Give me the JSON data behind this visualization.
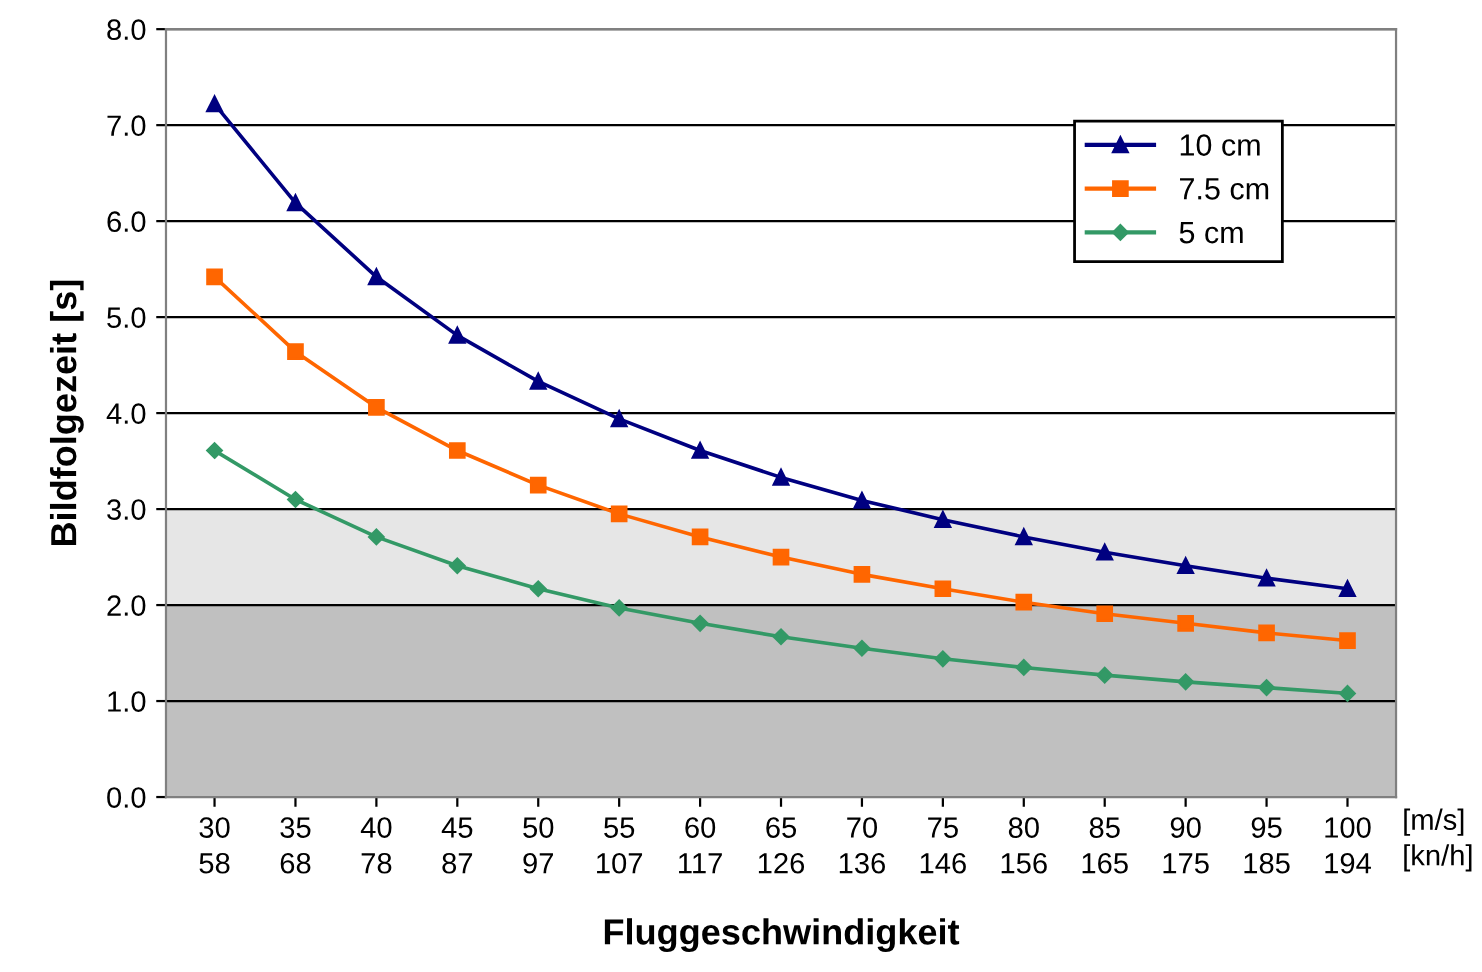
{
  "chart_data": {
    "type": "line",
    "xlabel": "Fluggeschwindigkeit",
    "ylabel": "Bildfolgezeit [s]",
    "categories": [
      "30\n58",
      "35\n68",
      "40\n78",
      "45\n87",
      "50\n97",
      "55\n107",
      "60\n117",
      "65\n126",
      "70\n136",
      "75\n146",
      "80\n156",
      "85\n165",
      "90\n175",
      "95\n185",
      "100\n194"
    ],
    "series": [
      {
        "name": "10 cm",
        "color": "#000080",
        "marker": "triangle",
        "values": [
          7.22,
          6.19,
          5.42,
          4.81,
          4.33,
          3.94,
          3.61,
          3.33,
          3.09,
          2.89,
          2.71,
          2.55,
          2.41,
          2.28,
          2.17
        ]
      },
      {
        "name": "7.5 cm",
        "color": "#ff6600",
        "marker": "square",
        "values": [
          5.42,
          4.64,
          4.06,
          3.61,
          3.25,
          2.95,
          2.71,
          2.5,
          2.32,
          2.17,
          2.03,
          1.91,
          1.81,
          1.71,
          1.63
        ]
      },
      {
        "name": "5 cm",
        "color": "#339966",
        "marker": "diamond",
        "values": [
          3.61,
          3.1,
          2.71,
          2.41,
          2.17,
          1.97,
          1.81,
          1.67,
          1.55,
          1.44,
          1.35,
          1.27,
          1.2,
          1.14,
          1.08
        ]
      }
    ],
    "ylim": [
      0,
      8
    ],
    "yticks": [
      {
        "value": 0,
        "label": "0.0"
      },
      {
        "value": 1,
        "label": "1.0"
      },
      {
        "value": 2,
        "label": "2.0"
      },
      {
        "value": 3,
        "label": "3.0"
      },
      {
        "value": 4,
        "label": "4.0"
      },
      {
        "value": 5,
        "label": "5.0"
      },
      {
        "value": 6,
        "label": "6.0"
      },
      {
        "value": 7,
        "label": "7.0"
      },
      {
        "value": 8,
        "label": "8.0"
      }
    ],
    "bands": [
      {
        "axis": "y",
        "from": 0,
        "to": 2,
        "color": "#c0c0c0"
      },
      {
        "axis": "y",
        "from": 2,
        "to": 3,
        "color": "#e6e6e6"
      }
    ],
    "annotations": [
      "[m/s]\n[kn/h]"
    ],
    "grid": "y",
    "legend": "top right",
    "line_style": "solid"
  }
}
